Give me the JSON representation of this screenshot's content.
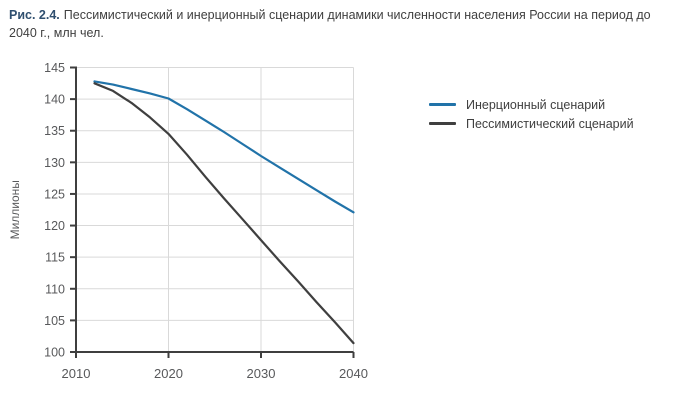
{
  "figure": {
    "label": "Рис. 2.4.",
    "caption": "Пессимистический и инерционный сценарии динамики численности населения России на период до 2040 г., млн чел."
  },
  "chart_data": {
    "type": "line",
    "title": "",
    "xlabel": "",
    "ylabel": "Миллионы",
    "xlim": [
      2010,
      2040
    ],
    "ylim": [
      100,
      145
    ],
    "x_ticks": [
      2010,
      2020,
      2030,
      2040
    ],
    "y_ticks": [
      100,
      105,
      110,
      115,
      120,
      125,
      130,
      135,
      140,
      145
    ],
    "grid": true,
    "legend_position": "right",
    "x": [
      2012,
      2014,
      2016,
      2018,
      2020,
      2022,
      2024,
      2026,
      2028,
      2030,
      2032,
      2034,
      2036,
      2038,
      2040
    ],
    "series": [
      {
        "name": "Инерционный сценарий",
        "color": "#2173a9",
        "values": [
          142.8,
          142.3,
          141.6,
          140.9,
          140.1,
          138.4,
          136.6,
          134.8,
          132.9,
          131.0,
          129.2,
          127.4,
          125.6,
          123.8,
          122.1
        ]
      },
      {
        "name": "Пессимистический сценарий",
        "color": "#3f3f3f",
        "values": [
          142.5,
          141.3,
          139.4,
          137.1,
          134.5,
          131.2,
          127.7,
          124.3,
          121.0,
          117.7,
          114.4,
          111.2,
          107.9,
          104.7,
          101.4
        ]
      }
    ],
    "axis_color": "#3f3f3f",
    "grid_color": "#d9d9d9",
    "tick_label_color": "#58595b"
  }
}
